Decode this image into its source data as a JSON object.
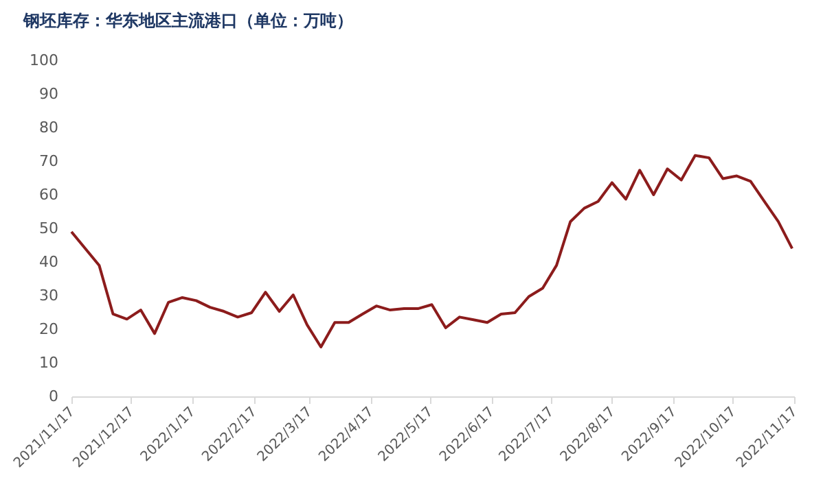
{
  "chart_data": {
    "type": "line",
    "title": "钢坯库存：华东地区主流港口（单位：万吨）",
    "x": [
      "2021-11-17",
      "2021-11-24",
      "2021-12-01",
      "2021-12-08",
      "2021-12-15",
      "2021-12-22",
      "2021-12-29",
      "2022-01-05",
      "2022-01-12",
      "2022-01-19",
      "2022-01-26",
      "2022-02-02",
      "2022-02-09",
      "2022-02-16",
      "2022-02-23",
      "2022-03-02",
      "2022-03-09",
      "2022-03-16",
      "2022-03-23",
      "2022-03-30",
      "2022-04-06",
      "2022-04-13",
      "2022-04-20",
      "2022-04-27",
      "2022-05-04",
      "2022-05-11",
      "2022-05-18",
      "2022-05-25",
      "2022-06-01",
      "2022-06-08",
      "2022-06-15",
      "2022-06-22",
      "2022-06-29",
      "2022-07-06",
      "2022-07-13",
      "2022-07-20",
      "2022-07-27",
      "2022-08-03",
      "2022-08-10",
      "2022-08-17",
      "2022-08-24",
      "2022-08-31",
      "2022-09-07",
      "2022-09-14",
      "2022-09-21",
      "2022-09-28",
      "2022-10-05",
      "2022-10-12",
      "2022-10-19",
      "2022-10-26",
      "2022-11-02",
      "2022-11-09",
      "2022-11-16"
    ],
    "series": [
      {
        "color": "#8c1c1c",
        "values": [
          49,
          44,
          39,
          24.5,
          23,
          25.7,
          18.7,
          28,
          29.4,
          28.5,
          26.5,
          25.3,
          23.6,
          24.9,
          31,
          25.3,
          30.2,
          21.3,
          14.7,
          22,
          22,
          24.5,
          26.9,
          25.7,
          26.1,
          26.1,
          27.3,
          20.4,
          23.6,
          22.8,
          22,
          24.5,
          24.9,
          29.7,
          32.2,
          39,
          52,
          56,
          58,
          63.6,
          58.7,
          67.3,
          60,
          67.7,
          64.4,
          71.7,
          71,
          64.8,
          65.6,
          64,
          58,
          52,
          44
        ]
      }
    ],
    "xlim": [
      "2021-11-17",
      "2022-11-17"
    ],
    "xticks": [
      {
        "value": "2021-11-17",
        "label": "2021/11/17"
      },
      {
        "value": "2021-12-17",
        "label": "2021/12/17"
      },
      {
        "value": "2022-01-17",
        "label": "2022/1/17"
      },
      {
        "value": "2022-02-17",
        "label": "2022/2/17"
      },
      {
        "value": "2022-03-17",
        "label": "2022/3/17"
      },
      {
        "value": "2022-04-17",
        "label": "2022/4/17"
      },
      {
        "value": "2022-05-17",
        "label": "2022/5/17"
      },
      {
        "value": "2022-06-17",
        "label": "2022/6/17"
      },
      {
        "value": "2022-07-17",
        "label": "2022/7/17"
      },
      {
        "value": "2022-08-17",
        "label": "2022/8/17"
      },
      {
        "value": "2022-09-17",
        "label": "2022/9/17"
      },
      {
        "value": "2022-10-17",
        "label": "2022/10/17"
      },
      {
        "value": "2022-11-17",
        "label": "2022/11/17"
      }
    ],
    "ylim": [
      0,
      100
    ],
    "yticks": [
      0,
      10,
      20,
      30,
      40,
      50,
      60,
      70,
      80,
      90,
      100
    ],
    "grid": false,
    "legend": false,
    "marker": "none",
    "line_style": "solid"
  }
}
